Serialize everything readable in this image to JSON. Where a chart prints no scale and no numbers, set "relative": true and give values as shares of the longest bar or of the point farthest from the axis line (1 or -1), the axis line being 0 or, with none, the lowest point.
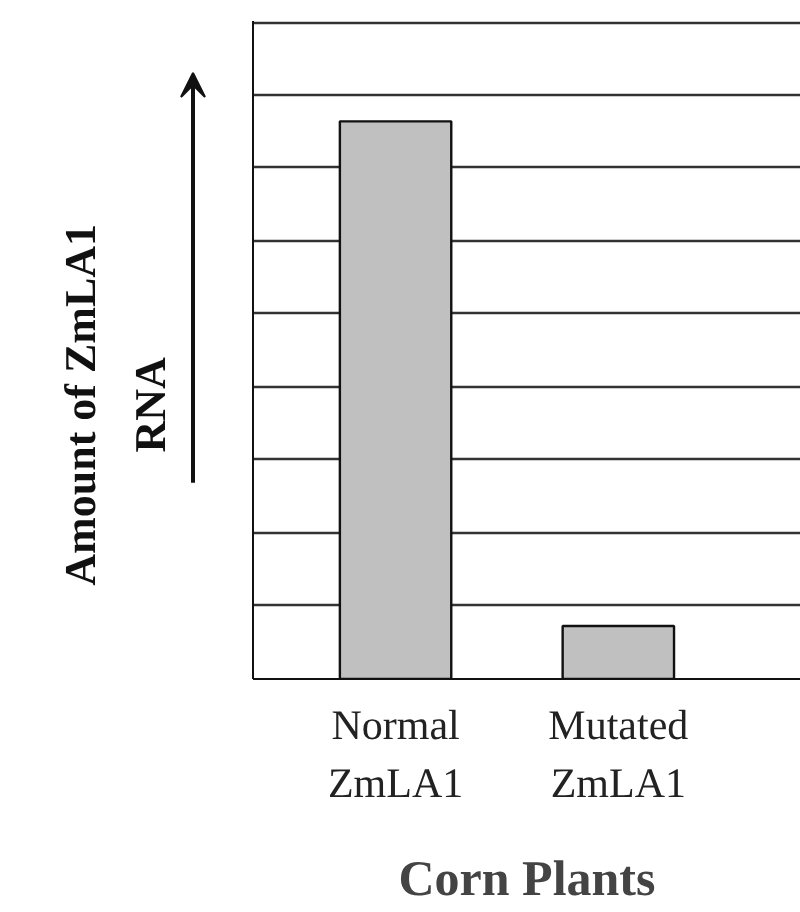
{
  "chart_data": {
    "type": "bar",
    "relative": true,
    "categories": [
      "Normal ZmLA1",
      "Mutated ZmLA1"
    ],
    "values": [
      1,
      0.095
    ],
    "color": "#c0c0c0",
    "xlabel": "Corn Plants",
    "ylabel": "Amount of ZmLA1 RNA",
    "grid": "y"
  }
}
